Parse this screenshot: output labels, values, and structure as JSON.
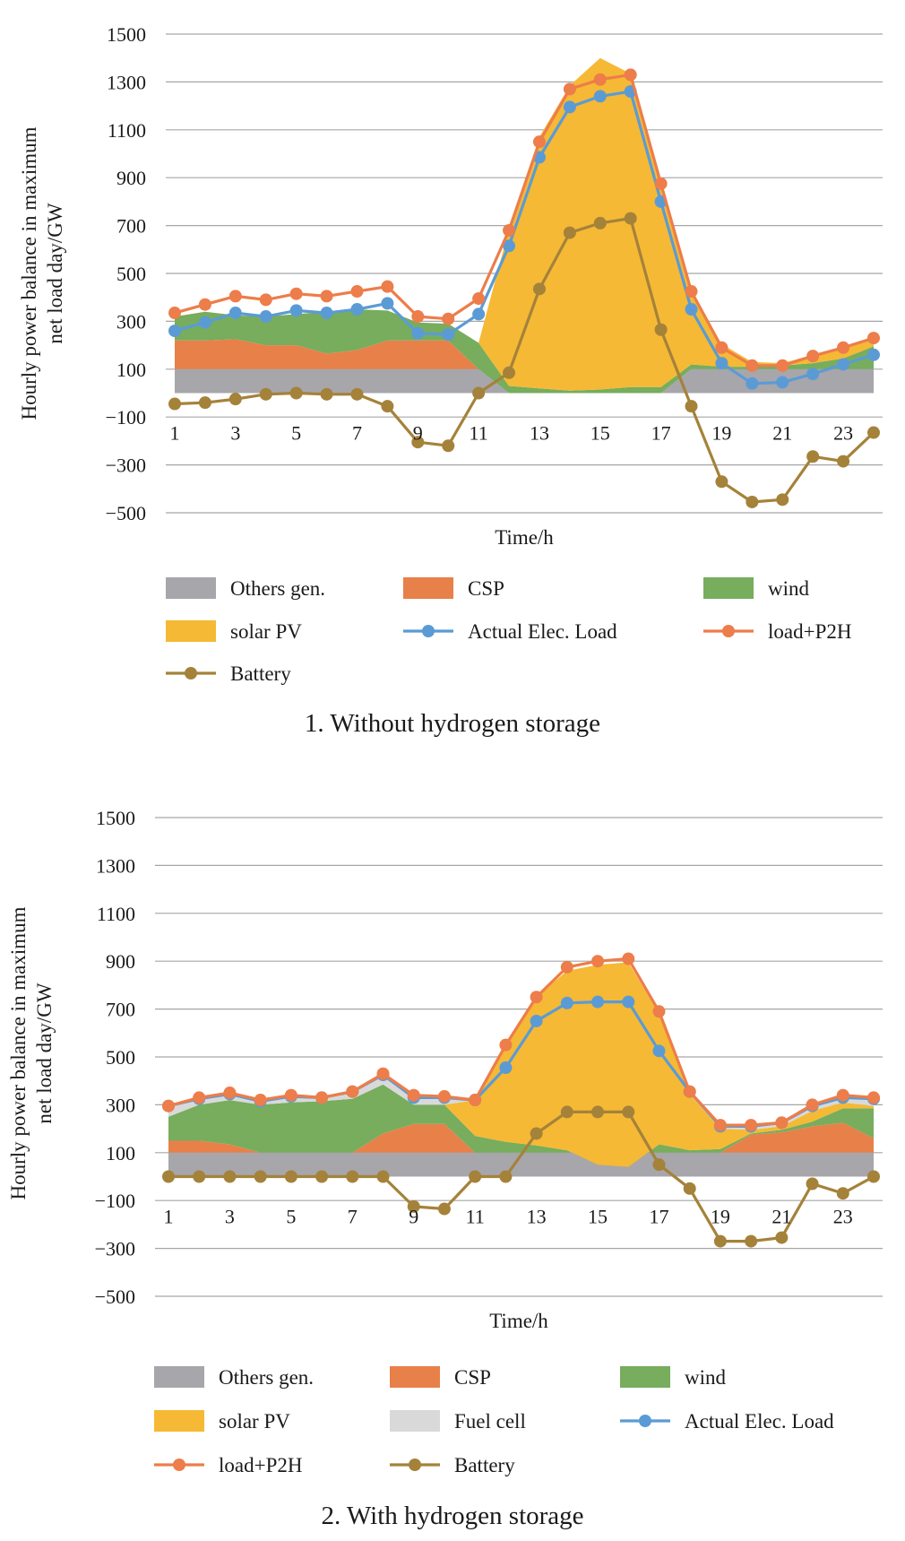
{
  "colors": {
    "others": "#a7a6ab",
    "csp": "#e8804a",
    "wind": "#77ad5d",
    "solar": "#f5b935",
    "fuel": "#d9d9d9",
    "actual": "#5b9bd5",
    "load": "#ed7d4a",
    "battery": "#a5823a",
    "grid": "#a6a6a6"
  },
  "chart_data": [
    {
      "type": "area",
      "title": "",
      "caption": "1. Without hydrogen storage",
      "xlabel": "Time/h",
      "ylabel_line1": "Hourly power balance in maximum",
      "ylabel_line2": "net load day/GW",
      "ylim": [
        -500,
        1500
      ],
      "yticks": [
        "1500",
        "1300",
        "1100",
        "900",
        "700",
        "500",
        "300",
        "100",
        "−100",
        "−300",
        "−500"
      ],
      "xtick_labels": [
        "1",
        "3",
        "5",
        "7",
        "9",
        "11",
        "13",
        "15",
        "17",
        "19",
        "21",
        "23"
      ],
      "grid": true,
      "legend_placement": "bottom",
      "x": [
        1,
        2,
        3,
        4,
        5,
        6,
        7,
        8,
        9,
        10,
        11,
        12,
        13,
        14,
        15,
        16,
        17,
        18,
        19,
        20,
        21,
        22,
        23,
        24
      ],
      "stacked_series": [
        {
          "name": "Others gen.",
          "key": "others",
          "values": [
            100,
            100,
            100,
            100,
            100,
            100,
            100,
            100,
            100,
            100,
            100,
            0,
            0,
            0,
            0,
            0,
            0,
            100,
            100,
            100,
            100,
            100,
            100,
            100
          ]
        },
        {
          "name": "CSP",
          "key": "csp",
          "values": [
            120,
            120,
            125,
            100,
            100,
            65,
            80,
            120,
            120,
            120,
            0,
            0,
            0,
            0,
            0,
            0,
            0,
            0,
            0,
            0,
            0,
            0,
            0,
            0
          ]
        },
        {
          "name": "wind",
          "key": "wind",
          "values": [
            100,
            120,
            100,
            120,
            130,
            175,
            170,
            125,
            75,
            70,
            110,
            30,
            20,
            10,
            15,
            25,
            25,
            20,
            10,
            10,
            15,
            25,
            45,
            95
          ]
        },
        {
          "name": "solar PV",
          "key": "solar",
          "values": [
            0,
            0,
            0,
            0,
            0,
            0,
            0,
            0,
            0,
            0,
            0,
            655,
            1050,
            1275,
            1385,
            1310,
            850,
            315,
            95,
            20,
            10,
            35,
            40,
            45
          ]
        }
      ],
      "line_series": [
        {
          "name": "Actual Elec. Load",
          "key": "actual",
          "values": [
            260,
            295,
            335,
            320,
            345,
            335,
            350,
            375,
            250,
            245,
            330,
            615,
            985,
            1195,
            1240,
            1260,
            800,
            350,
            125,
            40,
            45,
            80,
            120,
            160
          ]
        },
        {
          "name": "load+P2H",
          "key": "load",
          "values": [
            335,
            370,
            405,
            390,
            415,
            405,
            425,
            445,
            320,
            310,
            395,
            680,
            1050,
            1270,
            1310,
            1330,
            875,
            425,
            190,
            115,
            115,
            155,
            190,
            230
          ]
        },
        {
          "name": "Battery",
          "key": "battery",
          "values": [
            -45,
            -40,
            -25,
            -5,
            0,
            -5,
            -5,
            -55,
            -205,
            -220,
            0,
            85,
            435,
            670,
            710,
            730,
            265,
            -55,
            -370,
            -455,
            -445,
            -265,
            -285,
            -165
          ]
        }
      ],
      "legend": [
        {
          "label": "Others gen.",
          "key": "others",
          "kind": "box"
        },
        {
          "label": "CSP",
          "key": "csp",
          "kind": "box"
        },
        {
          "label": "wind",
          "key": "wind",
          "kind": "box"
        },
        {
          "label": "solar PV",
          "key": "solar",
          "kind": "box"
        },
        {
          "label": "Actual Elec. Load",
          "key": "actual",
          "kind": "line"
        },
        {
          "label": "load+P2H",
          "key": "load",
          "kind": "line"
        },
        {
          "label": "Battery",
          "key": "battery",
          "kind": "line"
        }
      ]
    },
    {
      "type": "area",
      "title": "",
      "caption": "2. With hydrogen storage",
      "xlabel": "Time/h",
      "ylabel_line1": "Hourly power balance in maximum",
      "ylabel_line2": "net load day/GW",
      "ylim": [
        -500,
        1500
      ],
      "yticks": [
        "1500",
        "1300",
        "1100",
        "900",
        "700",
        "500",
        "300",
        "100",
        "−100",
        "−300",
        "−500"
      ],
      "xtick_labels": [
        "1",
        "3",
        "5",
        "7",
        "9",
        "11",
        "13",
        "15",
        "17",
        "19",
        "21",
        "23"
      ],
      "grid": true,
      "legend_placement": "bottom",
      "x": [
        1,
        2,
        3,
        4,
        5,
        6,
        7,
        8,
        9,
        10,
        11,
        12,
        13,
        14,
        15,
        16,
        17,
        18,
        19,
        20,
        21,
        22,
        23,
        24
      ],
      "stacked_series": [
        {
          "name": "Others gen.",
          "key": "others",
          "values": [
            100,
            100,
            100,
            100,
            100,
            100,
            100,
            100,
            100,
            100,
            100,
            100,
            100,
            100,
            100,
            100,
            100,
            100,
            100,
            100,
            100,
            100,
            100,
            100
          ]
        },
        {
          "name": "CSP",
          "key": "csp",
          "values": [
            50,
            50,
            35,
            0,
            0,
            0,
            0,
            80,
            120,
            120,
            0,
            0,
            0,
            0,
            0,
            0,
            0,
            0,
            0,
            75,
            85,
            110,
            125,
            60
          ]
        },
        {
          "name": "wind",
          "key": "wind",
          "values": [
            100,
            150,
            185,
            200,
            210,
            215,
            225,
            205,
            80,
            80,
            70,
            45,
            30,
            10,
            -50,
            -60,
            35,
            10,
            15,
            5,
            10,
            20,
            60,
            125
          ]
        },
        {
          "name": "solar PV",
          "key": "solar",
          "values": [
            0,
            0,
            0,
            0,
            0,
            0,
            0,
            0,
            0,
            0,
            150,
            400,
            620,
            750,
            835,
            855,
            545,
            235,
            85,
            15,
            15,
            45,
            25,
            10
          ]
        },
        {
          "name": "Fuel cell",
          "key": "fuel",
          "values": [
            45,
            30,
            35,
            20,
            35,
            20,
            35,
            45,
            40,
            35,
            0,
            0,
            0,
            0,
            0,
            0,
            0,
            0,
            15,
            20,
            15,
            25,
            30,
            35
          ]
        }
      ],
      "line_series": [
        {
          "name": "Actual Elec. Load",
          "key": "actual",
          "values": [
            295,
            325,
            345,
            315,
            335,
            330,
            355,
            425,
            330,
            330,
            320,
            455,
            650,
            725,
            730,
            730,
            525,
            355,
            210,
            210,
            225,
            295,
            330,
            325
          ]
        },
        {
          "name": "load+P2H",
          "key": "load",
          "values": [
            295,
            330,
            350,
            320,
            340,
            330,
            355,
            430,
            340,
            335,
            320,
            550,
            750,
            875,
            900,
            910,
            690,
            355,
            215,
            215,
            225,
            300,
            340,
            330
          ]
        },
        {
          "name": "Battery",
          "key": "battery",
          "values": [
            0,
            0,
            0,
            0,
            0,
            0,
            0,
            0,
            -125,
            -135,
            0,
            0,
            180,
            270,
            270,
            270,
            50,
            -50,
            -270,
            -270,
            -255,
            -30,
            -70,
            0
          ]
        }
      ],
      "legend": [
        {
          "label": "Others gen.",
          "key": "others",
          "kind": "box"
        },
        {
          "label": "CSP",
          "key": "csp",
          "kind": "box"
        },
        {
          "label": "wind",
          "key": "wind",
          "kind": "box"
        },
        {
          "label": "solar PV",
          "key": "solar",
          "kind": "box"
        },
        {
          "label": "Fuel cell",
          "key": "fuel",
          "kind": "box"
        },
        {
          "label": "Actual Elec. Load",
          "key": "actual",
          "kind": "line"
        },
        {
          "label": "load+P2H",
          "key": "load",
          "kind": "line"
        },
        {
          "label": "Battery",
          "key": "battery",
          "kind": "line"
        }
      ]
    }
  ]
}
